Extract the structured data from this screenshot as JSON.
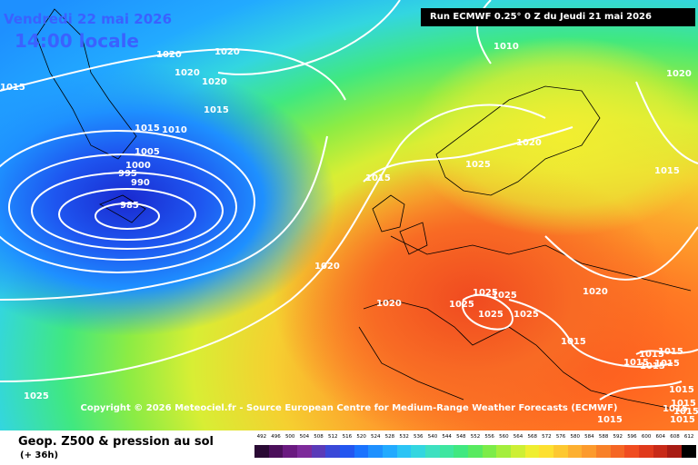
{
  "header": {
    "date": "Vendredi 22 mai 2026",
    "time": "14:00 locale",
    "run": "Run ECMWF 0.25° 0 Z du Jeudi 21 mai 2026"
  },
  "copyright": "Copyright © 2026 Meteociel.fr - Source European Centre for Medium-Range Weather Forecasts (ECMWF)",
  "footer": {
    "title": "Geop. Z500 & pression au sol",
    "subtitle": "(+ 36h)"
  },
  "scale": {
    "values": [
      "492",
      "496",
      "500",
      "504",
      "508",
      "512",
      "516",
      "520",
      "524",
      "528",
      "532",
      "536",
      "540",
      "544",
      "548",
      "552",
      "556",
      "560",
      "564",
      "568",
      "572",
      "576",
      "580",
      "584",
      "588",
      "592",
      "596",
      "600",
      "604",
      "608",
      "612"
    ],
    "colors": [
      "#2a0a34",
      "#4b0f5a",
      "#6a1a80",
      "#7d2a9a",
      "#5a3ab8",
      "#3a48d8",
      "#2356f0",
      "#1a73ff",
      "#1e90ff",
      "#22aaff",
      "#2bc4f5",
      "#33d6e0",
      "#3de0c0",
      "#3ee6a0",
      "#40e880",
      "#58ea60",
      "#7cec48",
      "#a4ee3c",
      "#cdef34",
      "#efee30",
      "#fde030",
      "#fdc830",
      "#fdb030",
      "#fc9a2c",
      "#f88028",
      "#f56624",
      "#f04c20",
      "#e03a1c",
      "#c82a18",
      "#a81c14",
      "#000000"
    ]
  },
  "pressure_labels": [
    {
      "text": "1020"
    },
    {
      "text": "1020"
    },
    {
      "text": "1020"
    },
    {
      "text": "1020"
    },
    {
      "text": "1015"
    },
    {
      "text": "1015"
    },
    {
      "text": "1015"
    },
    {
      "text": "1010"
    },
    {
      "text": "1005"
    },
    {
      "text": "1000"
    },
    {
      "text": "995"
    },
    {
      "text": "990"
    },
    {
      "text": "985"
    },
    {
      "text": "1010"
    },
    {
      "text": "1020"
    },
    {
      "text": "1025"
    },
    {
      "text": "1015"
    },
    {
      "text": "1015"
    },
    {
      "text": "1020"
    },
    {
      "text": "1020"
    },
    {
      "text": "1025"
    },
    {
      "text": "1025"
    },
    {
      "text": "1025"
    },
    {
      "text": "1025"
    },
    {
      "text": "1025"
    },
    {
      "text": "1020"
    },
    {
      "text": "1015"
    },
    {
      "text": "1015"
    },
    {
      "text": "1015"
    },
    {
      "text": "1015"
    },
    {
      "text": "1015"
    },
    {
      "text": "1015"
    },
    {
      "text": "1015"
    },
    {
      "text": "1015"
    },
    {
      "text": "1015"
    },
    {
      "text": "1025"
    },
    {
      "text": "1015"
    },
    {
      "text": "1015"
    },
    {
      "text": "1015"
    },
    {
      "text": "1020"
    }
  ]
}
